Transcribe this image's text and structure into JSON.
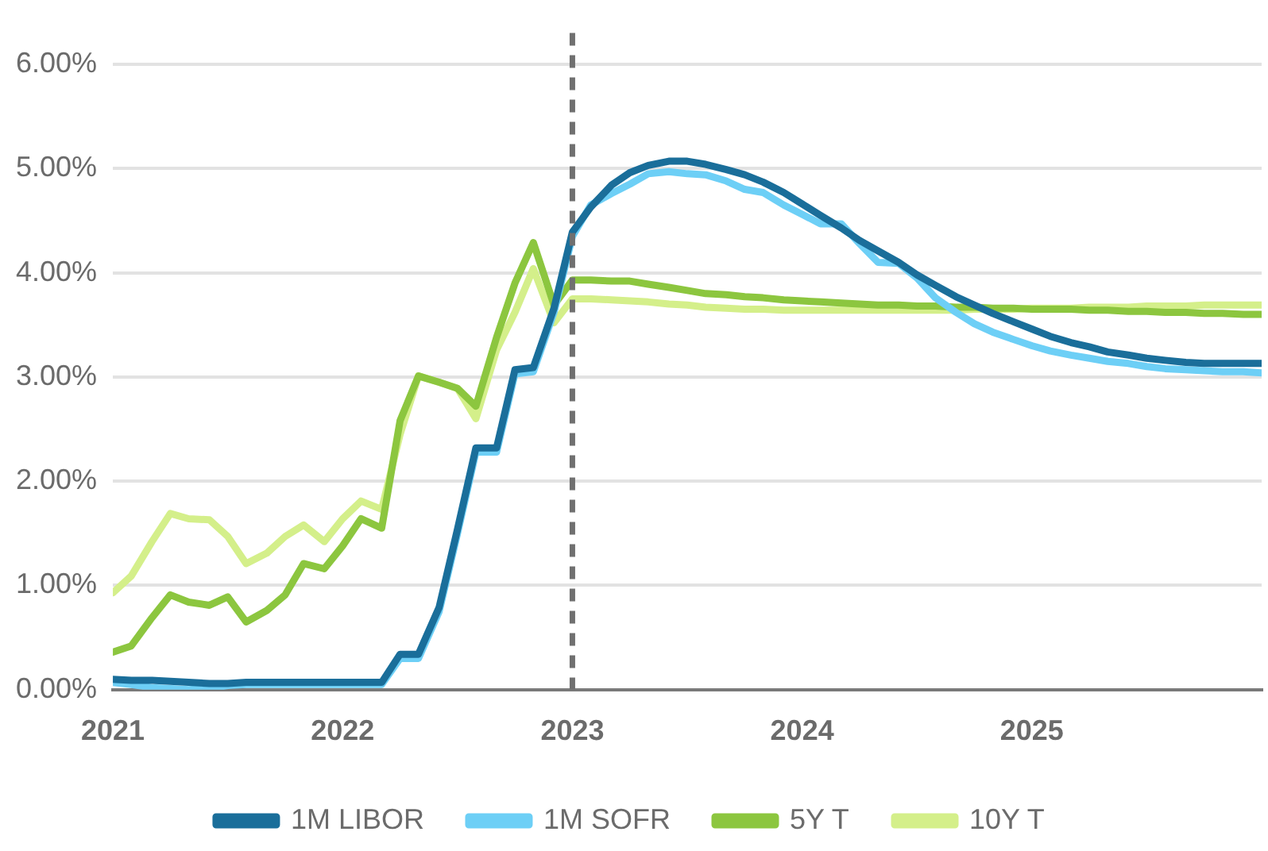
{
  "chart_data": {
    "type": "line",
    "x": [
      2021,
      2021.08,
      2021.17,
      2021.25,
      2021.33,
      2021.42,
      2021.5,
      2021.58,
      2021.67,
      2021.75,
      2021.83,
      2021.92,
      2022,
      2022.08,
      2022.17,
      2022.25,
      2022.33,
      2022.42,
      2022.5,
      2022.58,
      2022.67,
      2022.75,
      2022.83,
      2022.92,
      2023,
      2023.08,
      2023.17,
      2023.25,
      2023.33,
      2023.42,
      2023.5,
      2023.58,
      2023.67,
      2023.75,
      2023.83,
      2023.92,
      2024,
      2024.08,
      2024.17,
      2024.25,
      2024.33,
      2024.42,
      2024.5,
      2024.58,
      2024.67,
      2024.75,
      2024.83,
      2024.92,
      2025,
      2025.08,
      2025.17,
      2025.25,
      2025.33,
      2025.42,
      2025.5,
      2025.58,
      2025.67,
      2025.75,
      2025.83,
      2025.92,
      2026
    ],
    "series": [
      {
        "name": "1M LIBOR",
        "color": "#1a6e9a",
        "values": [
          0.1,
          0.09,
          0.09,
          0.08,
          0.07,
          0.06,
          0.06,
          0.07,
          0.07,
          0.07,
          0.07,
          0.07,
          0.07,
          0.07,
          0.07,
          0.34,
          0.34,
          0.79,
          1.54,
          2.32,
          2.32,
          3.07,
          3.09,
          3.66,
          4.39,
          4.63,
          4.84,
          4.96,
          5.03,
          5.07,
          5.07,
          5.04,
          4.99,
          4.94,
          4.87,
          4.77,
          4.66,
          4.55,
          4.43,
          4.31,
          4.21,
          4.1,
          3.98,
          3.88,
          3.77,
          3.69,
          3.61,
          3.53,
          3.46,
          3.39,
          3.33,
          3.29,
          3.24,
          3.21,
          3.18,
          3.16,
          3.14,
          3.13,
          3.13,
          3.13,
          3.13
        ]
      },
      {
        "name": "1M SOFR",
        "color": "#6dcff6",
        "values": [
          0.07,
          0.05,
          0.02,
          0.01,
          0.0,
          0.01,
          0.04,
          0.05,
          0.05,
          0.05,
          0.05,
          0.05,
          0.05,
          0.05,
          0.05,
          0.3,
          0.3,
          0.75,
          1.5,
          2.28,
          2.28,
          3.03,
          3.05,
          3.62,
          4.35,
          4.65,
          4.76,
          4.85,
          4.95,
          4.97,
          4.95,
          4.94,
          4.88,
          4.8,
          4.77,
          4.65,
          4.56,
          4.47,
          4.47,
          4.28,
          4.1,
          4.09,
          3.95,
          3.76,
          3.62,
          3.51,
          3.43,
          3.36,
          3.3,
          3.25,
          3.21,
          3.18,
          3.15,
          3.13,
          3.1,
          3.08,
          3.07,
          3.06,
          3.05,
          3.05,
          3.04
        ]
      },
      {
        "name": "5Y T",
        "color": "#8cc63f",
        "values": [
          0.36,
          0.42,
          0.69,
          0.91,
          0.84,
          0.81,
          0.89,
          0.65,
          0.76,
          0.91,
          1.21,
          1.16,
          1.38,
          1.64,
          1.55,
          2.58,
          3.01,
          2.95,
          2.89,
          2.72,
          3.38,
          3.9,
          4.29,
          3.69,
          3.93,
          3.93,
          3.92,
          3.92,
          3.89,
          3.86,
          3.83,
          3.8,
          3.79,
          3.77,
          3.76,
          3.74,
          3.73,
          3.72,
          3.71,
          3.7,
          3.69,
          3.69,
          3.68,
          3.68,
          3.67,
          3.67,
          3.66,
          3.66,
          3.65,
          3.65,
          3.65,
          3.64,
          3.64,
          3.63,
          3.63,
          3.62,
          3.62,
          3.61,
          3.61,
          3.6,
          3.6
        ]
      },
      {
        "name": "10Y T",
        "color": "#d4ef8a",
        "values": [
          0.93,
          1.09,
          1.42,
          1.69,
          1.64,
          1.63,
          1.47,
          1.21,
          1.31,
          1.47,
          1.58,
          1.42,
          1.64,
          1.81,
          1.73,
          2.45,
          3.01,
          2.95,
          2.89,
          2.6,
          3.26,
          3.62,
          4.04,
          3.52,
          3.75,
          3.75,
          3.74,
          3.73,
          3.72,
          3.7,
          3.69,
          3.67,
          3.66,
          3.65,
          3.65,
          3.64,
          3.64,
          3.64,
          3.64,
          3.64,
          3.64,
          3.64,
          3.64,
          3.64,
          3.64,
          3.65,
          3.65,
          3.65,
          3.66,
          3.66,
          3.66,
          3.67,
          3.67,
          3.67,
          3.68,
          3.68,
          3.68,
          3.69,
          3.69,
          3.69,
          3.69
        ]
      }
    ],
    "xlim": [
      2021,
      2026
    ],
    "xticks": [
      2021,
      2022,
      2023,
      2024,
      2025
    ],
    "ylim": [
      0,
      6.3
    ],
    "yticks": [
      {
        "value": 0,
        "label": "0.00%"
      },
      {
        "value": 1,
        "label": "1.00%"
      },
      {
        "value": 2,
        "label": "2.00%"
      },
      {
        "value": 3,
        "label": "3.00%"
      },
      {
        "value": 4,
        "label": "4.00%"
      },
      {
        "value": 5,
        "label": "5.00%"
      },
      {
        "value": 6,
        "label": "6.00%"
      }
    ],
    "grid": "y",
    "legend": "bottom",
    "ref_lines": [
      {
        "axis": "x",
        "value": 2023,
        "color": "#707070",
        "line_style": "dashed"
      }
    ]
  }
}
